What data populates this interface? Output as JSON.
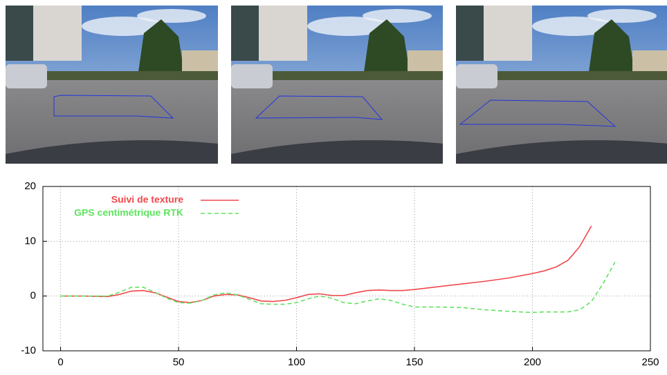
{
  "chart_data": {
    "type": "line",
    "x": [
      0,
      10,
      20,
      25,
      30,
      35,
      40,
      45,
      50,
      55,
      60,
      65,
      70,
      75,
      80,
      85,
      90,
      95,
      100,
      105,
      110,
      115,
      120,
      125,
      130,
      135,
      140,
      145,
      150,
      160,
      170,
      180,
      190,
      200,
      205,
      210,
      215,
      220,
      225,
      230,
      235
    ],
    "series": [
      {
        "name": "Suivi de texture",
        "color": "#f0474a",
        "dash": false,
        "values": [
          0,
          0,
          -0.1,
          0.3,
          0.9,
          1,
          0.6,
          -0.2,
          -1,
          -1.2,
          -0.8,
          0,
          0.3,
          0.2,
          -0.3,
          -0.9,
          -1,
          -0.8,
          -0.3,
          0.3,
          0.4,
          0.1,
          0.1,
          0.6,
          1,
          1.1,
          1,
          1,
          1.2,
          1.7,
          2.2,
          2.7,
          3.3,
          4.1,
          4.6,
          5.3,
          6.5,
          9,
          12.8,
          null,
          null
        ]
      },
      {
        "name": "GPS centimétrique RTK",
        "color": "#5ee35e",
        "dash": true,
        "values": [
          0,
          0,
          0,
          0.7,
          1.6,
          1.6,
          0.7,
          -0.4,
          -1.2,
          -1.3,
          -0.8,
          0.2,
          0.6,
          0.2,
          -0.6,
          -1.4,
          -1.5,
          -1.5,
          -1.2,
          -0.5,
          0,
          -0.4,
          -1.2,
          -1.4,
          -0.9,
          -0.5,
          -0.8,
          -1.5,
          -2,
          -2,
          -2.1,
          -2.5,
          -2.8,
          -3,
          -2.9,
          -2.9,
          -2.9,
          -2.5,
          -1,
          2.3,
          6.2
        ]
      }
    ],
    "xlim": [
      -7.5,
      250
    ],
    "ylim": [
      -10,
      20
    ],
    "xticks": [
      0,
      50,
      100,
      150,
      200,
      250
    ],
    "yticks": [
      -10,
      0,
      10,
      20
    ],
    "grid": true,
    "legend": "top-left"
  }
}
